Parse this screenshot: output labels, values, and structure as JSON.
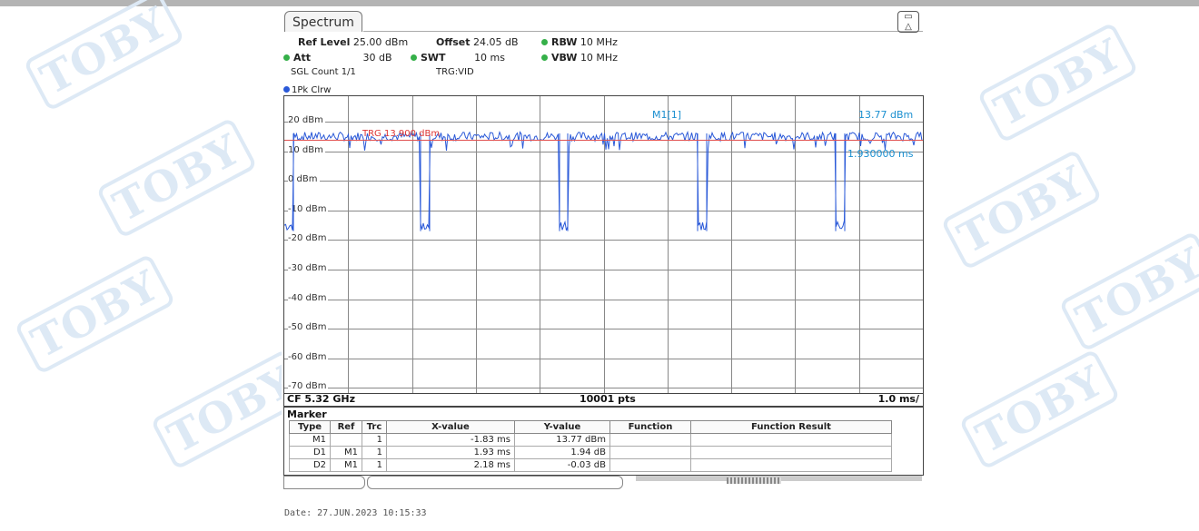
{
  "tab": {
    "title": "Spectrum"
  },
  "settings": {
    "ref_level_label": "Ref Level",
    "ref_level_value": "25.00 dBm",
    "offset_label": "Offset",
    "offset_value": "24.05 dB",
    "rbw_label": "RBW",
    "rbw_value": "10 MHz",
    "att_label": "Att",
    "att_value": "30 dB",
    "swt_label": "SWT",
    "swt_value": "10 ms",
    "vbw_label": "VBW",
    "vbw_value": "10 MHz",
    "sgl_count": "SGL Count 1/1",
    "trg": "TRG:VID"
  },
  "trace": {
    "label": "1Pk Clrw",
    "color": "#2a59d8"
  },
  "diagram": {
    "y_labels": [
      "20 dBm",
      "10 dBm",
      "0 dBm",
      "-10 dBm",
      "-20 dBm",
      "-30 dBm",
      "-40 dBm",
      "-50 dBm",
      "-60 dBm",
      "-70 dBm"
    ],
    "trigger_label": "TRG 13.900 dBm",
    "trigger_level_dbm": 13.9,
    "m1_label": "M1[1]",
    "m1_value": "13.77 dBm",
    "marker_result_2": "1.930000 ms",
    "center_freq": "CF 5.32 GHz",
    "points": "10001 pts",
    "span_per_div": "1.0 ms/"
  },
  "marker_table": {
    "title": "Marker",
    "headers": [
      "Type",
      "Ref",
      "Trc",
      "X-value",
      "Y-value",
      "Function",
      "Function Result"
    ],
    "rows": [
      {
        "type": "M1",
        "ref": "",
        "trc": "1",
        "x": "-1.83 ms",
        "y": "13.77 dBm",
        "function": "",
        "result": ""
      },
      {
        "type": "D1",
        "ref": "M1",
        "trc": "1",
        "x": "1.93 ms",
        "y": "1.94 dB",
        "function": "",
        "result": ""
      },
      {
        "type": "D2",
        "ref": "M1",
        "trc": "1",
        "x": "2.18 ms",
        "y": "-0.03 dB",
        "function": "",
        "result": ""
      }
    ]
  },
  "date": "Date: 27.JUN.2023  10:15:33",
  "watermark": "TOBY"
}
